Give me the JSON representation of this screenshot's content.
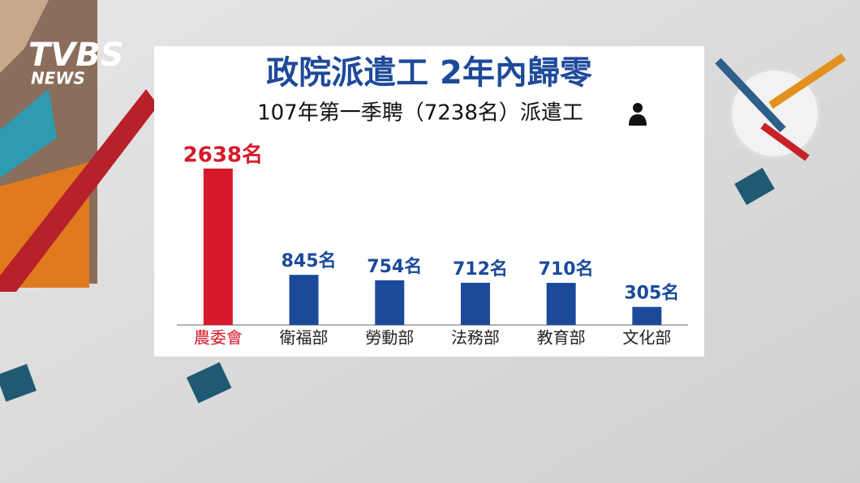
{
  "logo": {
    "brand": "TVBS",
    "sub": "NEWS"
  },
  "chart_data": {
    "type": "bar",
    "title": "政院派遣工 2年內歸零",
    "subtitle": "107年第一季聘（7238名）派遣工",
    "categories": [
      "農委會",
      "衛福部",
      "勞動部",
      "法務部",
      "教育部",
      "文化部"
    ],
    "values": [
      2638,
      845,
      754,
      712,
      710,
      305
    ],
    "value_labels": [
      "2638名",
      "845名",
      "754名",
      "712名",
      "710名",
      "305名"
    ],
    "colors": [
      "#d8192b",
      "#1b4a9b",
      "#1b4a9b",
      "#1b4a9b",
      "#1b4a9b",
      "#1b4a9b"
    ]
  }
}
